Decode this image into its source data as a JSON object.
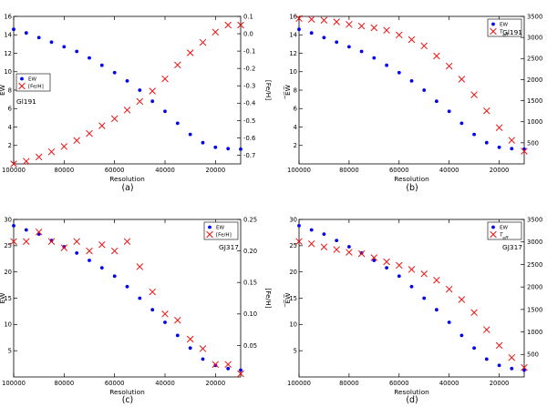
{
  "chart_data": [
    {
      "type": "scatter",
      "panel_label": "(a)",
      "star": "Gl191",
      "xlabel": "Resolution",
      "ylabel_left": "̅E̅W̅",
      "ylabel_right": "[Fe/H]",
      "xlim": [
        100000,
        10000
      ],
      "xticks": [
        100000,
        80000,
        60000,
        40000,
        20000
      ],
      "xtick_labels": [
        "100000",
        "80000",
        "60000",
        "40000",
        "20000"
      ],
      "ylim_left": [
        0,
        16
      ],
      "yticks_left": [
        2,
        4,
        6,
        8,
        10,
        12,
        14,
        16
      ],
      "ylim_right": [
        -0.75,
        0.1
      ],
      "yticks_right": [
        -0.7,
        -0.6,
        -0.5,
        -0.4,
        -0.3,
        -0.2,
        -0.1,
        0.0,
        0.1
      ],
      "ytick_labels_right": [
        "-0.7",
        "-0.6",
        "-0.5",
        "-0.4",
        "-0.3",
        "-0.2",
        "-0.1",
        "0.0",
        "0.1"
      ],
      "legend": [
        "EW",
        "[Fe/H]"
      ],
      "legend_position": "middle-left",
      "x": [
        100000,
        95000,
        90000,
        85000,
        80000,
        75000,
        70000,
        65000,
        60000,
        55000,
        50000,
        45000,
        40000,
        35000,
        30000,
        25000,
        20000,
        15000,
        10000
      ],
      "series": [
        {
          "name": "EW",
          "axis": "left",
          "marker": "dot",
          "color": "#0000ee",
          "values": [
            14.6,
            14.2,
            13.7,
            13.2,
            12.7,
            12.2,
            11.5,
            10.7,
            9.9,
            9.0,
            8.0,
            6.8,
            5.7,
            4.4,
            3.2,
            2.3,
            1.8,
            1.65,
            1.6
          ]
        },
        {
          "name": "[Fe/H]",
          "axis": "right",
          "marker": "x",
          "color": "#ee1111",
          "values": [
            -0.75,
            -0.735,
            -0.71,
            -0.68,
            -0.65,
            -0.615,
            -0.575,
            -0.53,
            -0.49,
            -0.44,
            -0.39,
            -0.33,
            -0.26,
            -0.18,
            -0.11,
            -0.05,
            0.01,
            0.05,
            0.05
          ]
        }
      ]
    },
    {
      "type": "scatter",
      "panel_label": "(b)",
      "star": "Gl191",
      "xlabel": "Resolution",
      "ylabel_left": "̅E̅W̅",
      "ylabel_right": "T_eff",
      "xlim": [
        100000,
        10000
      ],
      "xticks": [
        100000,
        80000,
        60000,
        40000,
        20000
      ],
      "xtick_labels": [
        "100000",
        "80000",
        "60000",
        "40000",
        "20000"
      ],
      "ylim_left": [
        0,
        16
      ],
      "yticks_left": [
        2,
        4,
        6,
        8,
        10,
        12,
        14,
        16
      ],
      "ylim_right": [
        0,
        3500
      ],
      "yticks_right": [
        500,
        1000,
        1500,
        2000,
        2500,
        3000,
        3500
      ],
      "ytick_labels_right": [
        "500",
        "1000",
        "1500",
        "2000",
        "2500",
        "3000",
        "3500"
      ],
      "legend": [
        "EW",
        "T_eff"
      ],
      "legend_position": "top-right",
      "x": [
        100000,
        95000,
        90000,
        85000,
        80000,
        75000,
        70000,
        65000,
        60000,
        55000,
        50000,
        45000,
        40000,
        35000,
        30000,
        25000,
        20000,
        15000,
        10000
      ],
      "series": [
        {
          "name": "EW",
          "axis": "left",
          "marker": "dot",
          "color": "#0000ee",
          "values": [
            14.6,
            14.2,
            13.7,
            13.2,
            12.7,
            12.2,
            11.5,
            10.7,
            9.9,
            9.0,
            8.0,
            6.8,
            5.7,
            4.4,
            3.2,
            2.3,
            1.8,
            1.65,
            1.6
          ]
        },
        {
          "name": "T_eff",
          "axis": "right",
          "marker": "x",
          "color": "#ee1111",
          "values": [
            3450,
            3430,
            3410,
            3370,
            3310,
            3270,
            3230,
            3170,
            3060,
            2950,
            2800,
            2560,
            2320,
            2010,
            1640,
            1260,
            860,
            560,
            300
          ]
        }
      ]
    },
    {
      "type": "scatter",
      "panel_label": "(c)",
      "star": "GJ317",
      "xlabel": "Resolution",
      "ylabel_left": "̅E̅W̅",
      "ylabel_right": "[Fe/H]",
      "xlim": [
        100000,
        10000
      ],
      "xticks": [
        100000,
        80000,
        60000,
        40000,
        20000
      ],
      "xtick_labels": [
        "100000",
        "80000",
        "60000",
        "40000",
        "20000"
      ],
      "ylim_left": [
        0,
        30
      ],
      "yticks_left": [
        5,
        10,
        15,
        20,
        25,
        30
      ],
      "ylim_right": [
        0.0,
        0.25
      ],
      "yticks_right": [
        0.05,
        0.1,
        0.15,
        0.2,
        0.25
      ],
      "ytick_labels_right": [
        "0.05",
        "0.10",
        "0.15",
        "0.20",
        "0.25"
      ],
      "legend": [
        "EW",
        "[Fe/H]"
      ],
      "legend_position": "top-right",
      "x": [
        100000,
        95000,
        90000,
        85000,
        80000,
        75000,
        70000,
        65000,
        60000,
        55000,
        50000,
        45000,
        40000,
        35000,
        30000,
        25000,
        20000,
        15000,
        10000
      ],
      "series": [
        {
          "name": "EW",
          "axis": "left",
          "marker": "dot",
          "color": "#0000ee",
          "values": [
            28.8,
            28.0,
            27.2,
            26.0,
            24.8,
            23.6,
            22.2,
            20.8,
            19.2,
            17.2,
            15.0,
            12.8,
            10.4,
            7.9,
            5.5,
            3.4,
            2.2,
            1.6,
            1.3
          ]
        },
        {
          "name": "[Fe/H]",
          "axis": "right",
          "marker": "x",
          "color": "#ee1111",
          "values": [
            0.215,
            0.215,
            0.23,
            0.215,
            0.205,
            0.215,
            0.2,
            0.21,
            0.2,
            0.215,
            0.175,
            0.135,
            0.1,
            0.09,
            0.06,
            0.045,
            0.02,
            0.02,
            0.005
          ]
        }
      ]
    },
    {
      "type": "scatter",
      "panel_label": "(d)",
      "star": "GJ317",
      "xlabel": "Resolution",
      "ylabel_left": "̅E̅W̅",
      "ylabel_right": "T_eff",
      "xlim": [
        100000,
        10000
      ],
      "xticks": [
        100000,
        80000,
        60000,
        40000,
        20000
      ],
      "xtick_labels": [
        "100000",
        "80000",
        "60000",
        "40000",
        "20000"
      ],
      "ylim_left": [
        0,
        30
      ],
      "yticks_left": [
        5,
        10,
        15,
        20,
        25,
        30
      ],
      "ylim_right": [
        0,
        3500
      ],
      "yticks_right": [
        500,
        1000,
        1500,
        2000,
        2500,
        3000,
        3500
      ],
      "ytick_labels_right": [
        "500",
        "1000",
        "1500",
        "2000",
        "2500",
        "3000",
        "3500"
      ],
      "legend": [
        "EW",
        "T_eff"
      ],
      "legend_position": "top-right",
      "x": [
        100000,
        95000,
        90000,
        85000,
        80000,
        75000,
        70000,
        65000,
        60000,
        55000,
        50000,
        45000,
        40000,
        35000,
        30000,
        25000,
        20000,
        15000,
        10000
      ],
      "series": [
        {
          "name": "EW",
          "axis": "left",
          "marker": "dot",
          "color": "#0000ee",
          "values": [
            28.8,
            28.0,
            27.2,
            26.0,
            24.8,
            23.6,
            22.2,
            20.8,
            19.2,
            17.2,
            15.0,
            12.8,
            10.4,
            7.9,
            5.5,
            3.4,
            2.2,
            1.6,
            1.3
          ]
        },
        {
          "name": "T_eff",
          "axis": "right",
          "marker": "x",
          "color": "#ee1111",
          "values": [
            3010,
            2960,
            2890,
            2830,
            2770,
            2740,
            2650,
            2560,
            2480,
            2390,
            2290,
            2150,
            1950,
            1720,
            1430,
            1050,
            700,
            430,
            210
          ]
        }
      ]
    }
  ]
}
